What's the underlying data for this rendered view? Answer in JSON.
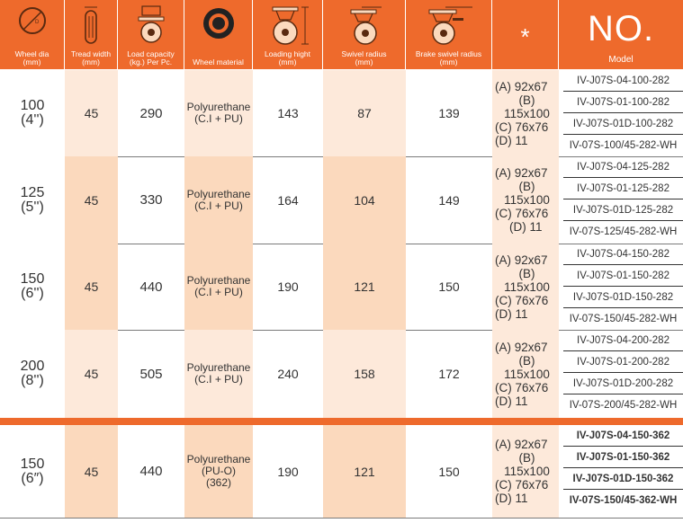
{
  "headers": {
    "wheel_dia": "Wheel dia\n(mm)",
    "tread_width": "Tread width\n(mm)",
    "load_capacity": "Load capacity\n(kg.) Per Pc.",
    "wheel_material": "Wheel material",
    "loading_height": "Loading hight\n(mm)",
    "swivel_radius": "Swivel radius\n(mm)",
    "brake_swivel_radius": "Brake swivel radius\n(mm)",
    "star": "*",
    "no": "NO.",
    "model": "Model",
    "icon_kg_label": "Kg",
    "icon_d_label": "D",
    "icon_h_label": "H",
    "icon_l_label": "L"
  },
  "colors": {
    "header_bg": "#ee6a2c",
    "shade_light": "#fde9da",
    "shade_dark": "#fbd9bd"
  },
  "rows": [
    {
      "dia": "100",
      "dia_in": "(4'')",
      "tread": "45",
      "load": "290",
      "mat1": "Polyurethane",
      "mat2": "(C.I + PU)",
      "mat3": "",
      "height": "143",
      "swivel": "87",
      "brake": "139",
      "star": [
        "(A) 92x67",
        "(B) 115x100",
        "(C) 76x76",
        "(D) 11"
      ],
      "models": [
        "IV-J07S-04-100-282",
        "IV-J07S-01-100-282",
        "IV-J07S-01D-100-282",
        "IV-07S-100/45-282-WH"
      ]
    },
    {
      "dia": "125",
      "dia_in": "(5'')",
      "tread": "45",
      "load": "330",
      "mat1": "Polyurethane",
      "mat2": "(C.I + PU)",
      "mat3": "",
      "height": "164",
      "swivel": "104",
      "brake": "149",
      "star": [
        "(A) 92x67",
        "(B) 115x100",
        "(C) 76x76",
        "(D) 11"
      ],
      "models": [
        "IV-J07S-04-125-282",
        "IV-J07S-01-125-282",
        "IV-J07S-01D-125-282",
        "IV-07S-125/45-282-WH"
      ]
    },
    {
      "dia": "150",
      "dia_in": "(6'')",
      "tread": "45",
      "load": "440",
      "mat1": "Polyurethane",
      "mat2": "(C.I + PU)",
      "mat3": "",
      "height": "190",
      "swivel": "121",
      "brake": "150",
      "star": [
        "(A) 92x67",
        "(B) 115x100",
        "(C) 76x76",
        "(D) 11"
      ],
      "models": [
        "IV-J07S-04-150-282",
        "IV-J07S-01-150-282",
        "IV-J07S-01D-150-282",
        "IV-07S-150/45-282-WH"
      ]
    },
    {
      "dia": "200",
      "dia_in": "(8'')",
      "tread": "45",
      "load": "505",
      "mat1": "Polyurethane",
      "mat2": "(C.I + PU)",
      "mat3": "",
      "height": "240",
      "swivel": "158",
      "brake": "172",
      "star": [
        "(A) 92x67",
        "(B) 115x100",
        "(C) 76x76",
        "(D) 11"
      ],
      "models": [
        "IV-J07S-04-200-282",
        "IV-J07S-01-200-282",
        "IV-J07S-01D-200-282",
        "IV-07S-200/45-282-WH"
      ]
    },
    {
      "dia": "150",
      "dia_in": "(6″)",
      "tread": "45",
      "load": "440",
      "mat1": "Polyurethane",
      "mat2": "(PU-O)",
      "mat3": "(362)",
      "height": "190",
      "swivel": "121",
      "brake": "150",
      "star": [
        "(A) 92x67",
        "(B) 115x100",
        "(C) 76x76",
        "(D) 11"
      ],
      "models": [
        "IV-J07S-04-150-362",
        "IV-J07S-01-150-362",
        "IV-J07S-01D-150-362",
        "IV-07S-150/45-362-WH"
      ]
    }
  ]
}
